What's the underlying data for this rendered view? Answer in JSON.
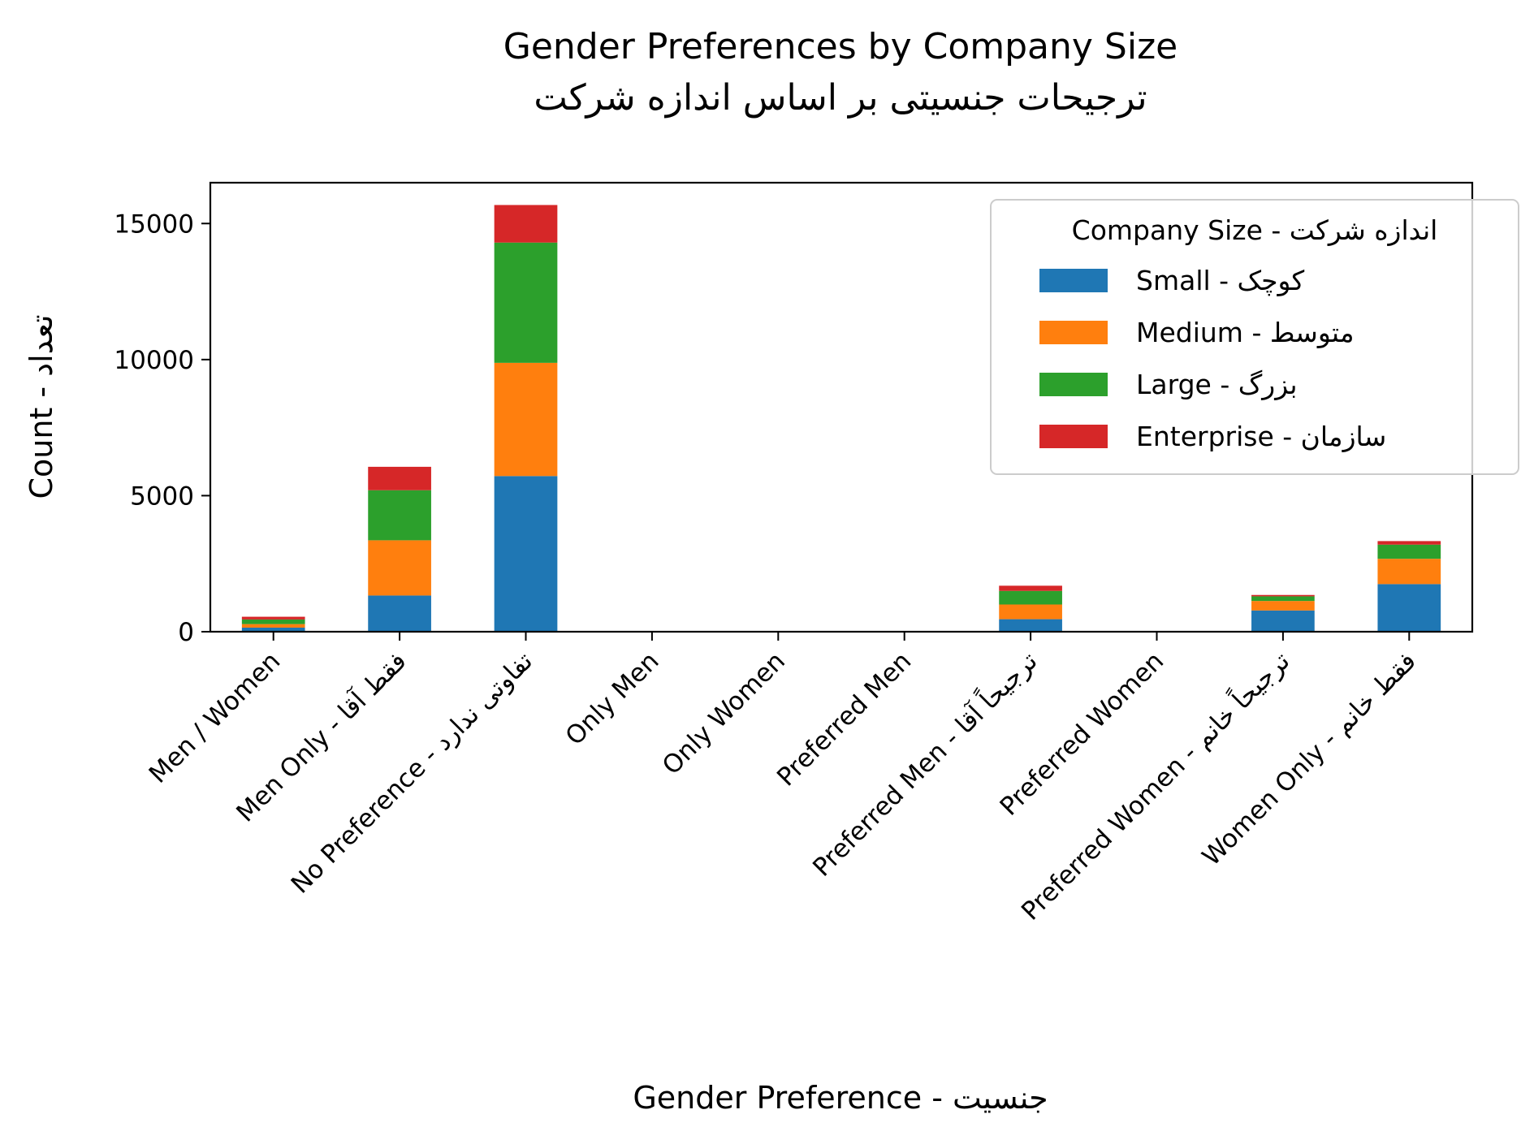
{
  "chart_data": {
    "type": "bar",
    "stacked": true,
    "title": "Gender Preferences by Company Size",
    "subtitle": "ترجیحات جنسیتی بر اساس اندازه شرکت",
    "xlabel": "Gender Preference - جنسیت",
    "ylabel": "Count - تعداد",
    "ylim": [
      0,
      16500
    ],
    "yticks": [
      0,
      5000,
      10000,
      15000
    ],
    "grid": false,
    "legend_title": "Company Size - اندازه شرکت",
    "legend_position": "top-right",
    "categories": [
      "Men / Women",
      "Men Only - فقط آقا",
      "No Preference - تفاوتی ندارد",
      "Only Men",
      "Only Women",
      "Preferred Men",
      "Preferred Men - ترجیحاً آقا",
      "Preferred Women",
      "Preferred Women - ترجیحاً خانم",
      "Women Only - فقط خانم"
    ],
    "series": [
      {
        "name": "Small - کوچک",
        "color": "#1f77b4",
        "values": [
          150,
          1330,
          5720,
          0,
          0,
          0,
          460,
          0,
          780,
          1750
        ]
      },
      {
        "name": "Medium - متوسط",
        "color": "#ff7f0e",
        "values": [
          130,
          2030,
          4160,
          0,
          0,
          0,
          540,
          0,
          350,
          930
        ]
      },
      {
        "name": "Large - بزرگ",
        "color": "#2ca02c",
        "values": [
          170,
          1840,
          4420,
          0,
          0,
          0,
          500,
          0,
          170,
          520
        ]
      },
      {
        "name": "Enterprise - سازمان",
        "color": "#d62728",
        "values": [
          100,
          860,
          1380,
          0,
          0,
          0,
          190,
          0,
          50,
          130
        ]
      }
    ]
  }
}
